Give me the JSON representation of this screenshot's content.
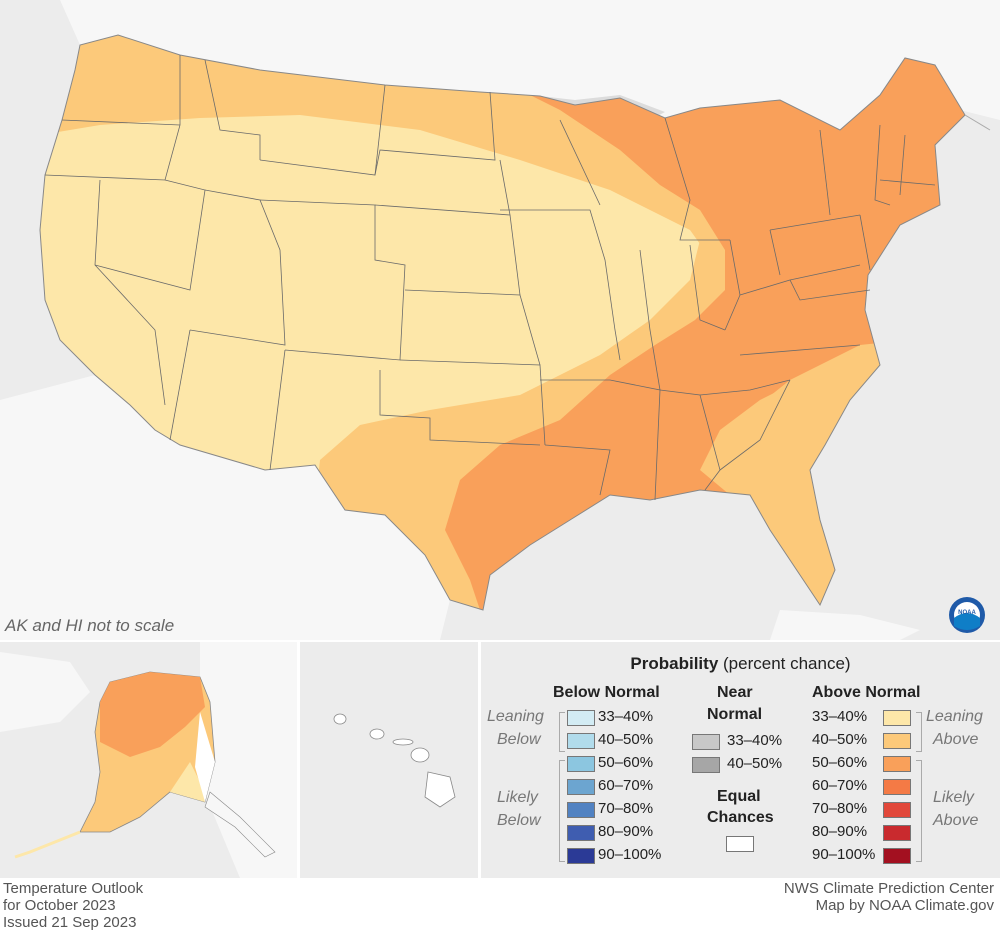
{
  "map": {
    "scale_note": "AK and HI not to scale",
    "logo_icon": "noaa-logo-icon",
    "colors": {
      "background": "#ececec",
      "land": "#f5f5f5",
      "lean_above": "#fde7a9",
      "above_40_50": "#fcc97a",
      "above_50_60": "#f9a05a",
      "equal_chances": "#ffffff"
    },
    "regions": [
      {
        "name": "west-plains",
        "category": "33-40% Above"
      },
      {
        "name": "northwest-rim",
        "category": "40-50% Above"
      },
      {
        "name": "texas-ohio-valley",
        "category": "40-50% Above"
      },
      {
        "name": "east-gulf",
        "category": "50-60% Above"
      },
      {
        "name": "southeast-coast",
        "category": "40-50% Above"
      }
    ]
  },
  "legend": {
    "title_bold": "Probability",
    "title_rest": " (percent chance)",
    "below": {
      "heading": "Below Normal",
      "leaning_label_1": "Leaning",
      "leaning_label_2": "Below",
      "likely_label_1": "Likely",
      "likely_label_2": "Below",
      "items": [
        {
          "label": "33–40%",
          "color": "#d3ecf4"
        },
        {
          "label": "40–50%",
          "color": "#b1dcec"
        },
        {
          "label": "50–60%",
          "color": "#8cc6e0"
        },
        {
          "label": "60–70%",
          "color": "#6ca5d0"
        },
        {
          "label": "70–80%",
          "color": "#5182c2"
        },
        {
          "label": "80–90%",
          "color": "#3f5db0"
        },
        {
          "label": "90–100%",
          "color": "#2b3a96"
        }
      ]
    },
    "near": {
      "heading_1": "Near",
      "heading_2": "Normal",
      "items": [
        {
          "label": "33–40%",
          "color": "#c8c8c8"
        },
        {
          "label": "40–50%",
          "color": "#a6a6a6"
        }
      ],
      "equal_1": "Equal",
      "equal_2": "Chances",
      "equal_color": "#ffffff"
    },
    "above": {
      "heading": "Above Normal",
      "leaning_label_1": "Leaning",
      "leaning_label_2": "Above",
      "likely_label_1": "Likely",
      "likely_label_2": "Above",
      "items": [
        {
          "label": "33–40%",
          "color": "#fde7a9"
        },
        {
          "label": "40–50%",
          "color": "#fcc97a"
        },
        {
          "label": "50–60%",
          "color": "#f9a05a"
        },
        {
          "label": "60–70%",
          "color": "#f47a45"
        },
        {
          "label": "70–80%",
          "color": "#e1483a"
        },
        {
          "label": "80–90%",
          "color": "#c92a2e"
        },
        {
          "label": "90–100%",
          "color": "#a31020"
        }
      ]
    }
  },
  "footer": {
    "line1": "Temperature Outlook",
    "line2": "for October 2023",
    "line3": "Issued 21 Sep 2023",
    "credit1": "NWS Climate Prediction Center",
    "credit2": "Map by NOAA Climate.gov"
  }
}
